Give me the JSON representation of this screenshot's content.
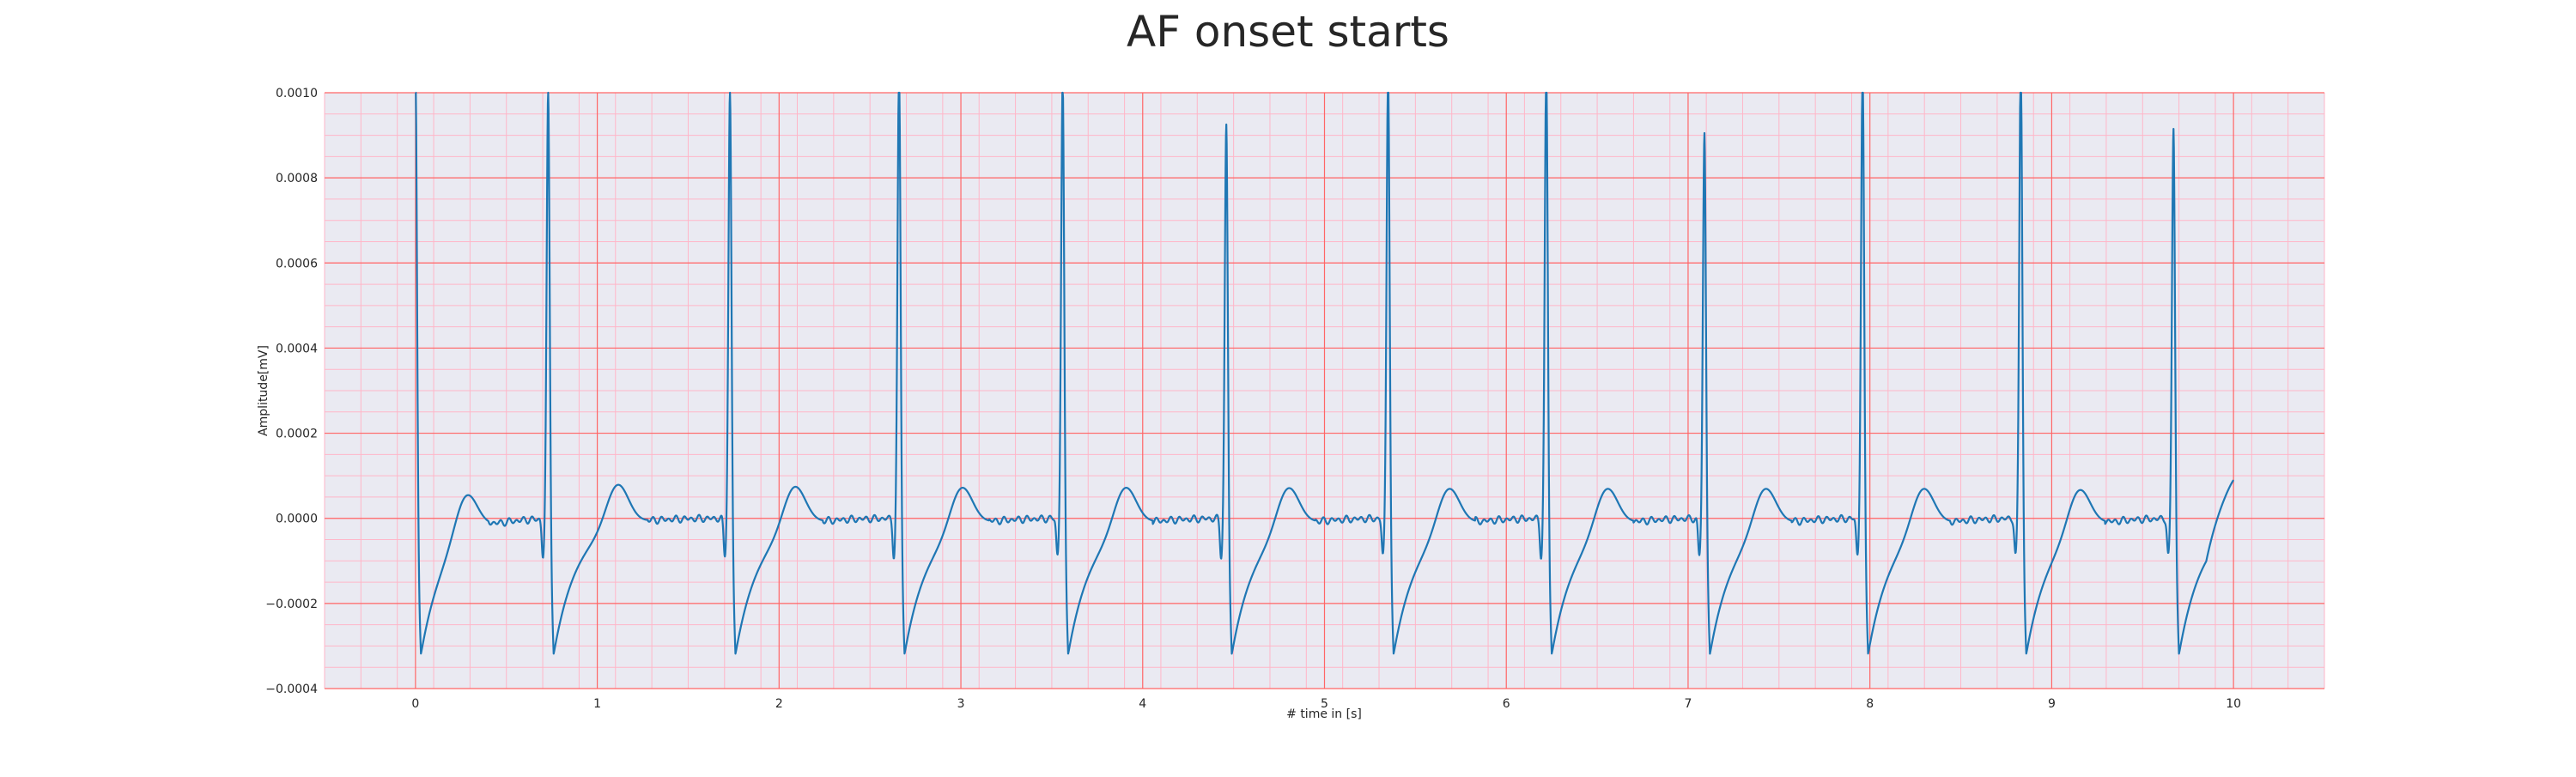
{
  "chart_data": {
    "type": "line",
    "title": "AF onset starts",
    "xlabel": "# time in [s]",
    "ylabel": "Amplitude[mV]",
    "xlim": [
      -0.5,
      10.5
    ],
    "ylim": [
      -0.0004,
      0.001
    ],
    "x_ticks": [
      0,
      1,
      2,
      3,
      4,
      5,
      6,
      7,
      8,
      9,
      10
    ],
    "x_tick_labels": [
      "0",
      "1",
      "2",
      "3",
      "4",
      "5",
      "6",
      "7",
      "8",
      "9",
      "10"
    ],
    "y_ticks": [
      -0.0004,
      -0.0002,
      0.0,
      0.0002,
      0.0004,
      0.0006,
      0.0008,
      0.001
    ],
    "y_tick_labels": [
      "−0.0004",
      "−0.0002",
      "0.0000",
      "0.0002",
      "0.0004",
      "0.0006",
      "0.0008",
      "0.0010"
    ],
    "grid": {
      "major": true,
      "minor": true,
      "major_x_step": 1,
      "major_y_step": 0.0002,
      "minor_x_step": 0.2,
      "minor_y_step": 5e-05
    },
    "colors": {
      "background": "#eaeaf2",
      "major_grid": "#ff6666",
      "minor_grid": "#ffb6c8",
      "line": "#1f77b4",
      "text": "#262626"
    },
    "series": [
      {
        "beats": [
          {
            "t": 0.0,
            "amp": 0.00096
          },
          {
            "t": 0.73,
            "amp": 0.00089
          },
          {
            "t": 1.73,
            "amp": 0.00089
          },
          {
            "t": 2.66,
            "amp": 0.00095
          },
          {
            "t": 3.56,
            "amp": 0.00092
          },
          {
            "t": 4.46,
            "amp": 0.00081
          },
          {
            "t": 5.35,
            "amp": 0.00094
          },
          {
            "t": 6.22,
            "amp": 0.00095
          },
          {
            "t": 7.09,
            "amp": 0.00079
          },
          {
            "t": 7.96,
            "amp": 0.00095
          },
          {
            "t": 8.83,
            "amp": 0.00097
          },
          {
            "t": 9.67,
            "amp": 0.0008
          }
        ],
        "s_trough": -0.00032,
        "t_wave_peak": 0.0001,
        "t_end": 10.0,
        "v_end": 9e-05
      }
    ]
  }
}
